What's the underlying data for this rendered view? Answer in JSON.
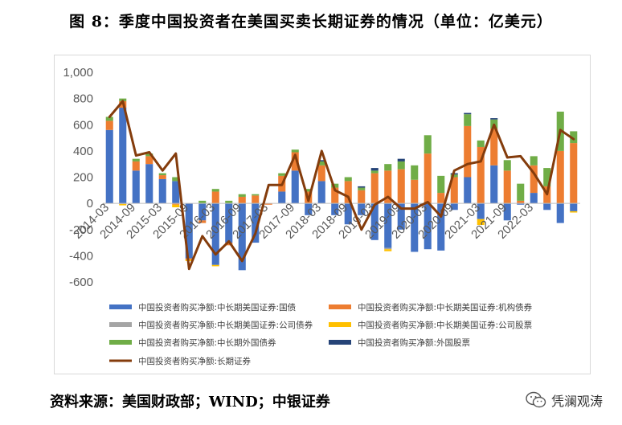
{
  "figure": {
    "title": "图 8：季度中国投资者在美国买卖长期证券的情况（单位：亿美元）",
    "source": "资料来源：美国财政部；WIND；中银证券",
    "watermark": "凭澜观涛",
    "watermark_icon": "wechat-icon"
  },
  "chart_data": {
    "type": "bar",
    "stacked": true,
    "title": "",
    "xlabel": "",
    "ylabel": "",
    "ylim": [
      -600,
      1000
    ],
    "yticks": [
      -600,
      -400,
      -200,
      0,
      200,
      400,
      600,
      800,
      1000
    ],
    "ytick_labels": [
      "-600",
      "-400",
      "-200",
      "0",
      "200",
      "400",
      "600",
      "800",
      "1,000"
    ],
    "grid": false,
    "legend_position": "bottom",
    "categories": [
      "2014-03",
      "2014-06",
      "2014-09",
      "2014-12",
      "2015-03",
      "2015-06",
      "2015-09",
      "2015-12",
      "2016-03",
      "2016-06",
      "2016-09",
      "2016-12",
      "2017-03",
      "2017-06",
      "2017-09",
      "2017-12",
      "2018-03",
      "2018-06",
      "2018-09",
      "2018-12",
      "2019-03",
      "2019-06",
      "2019-09",
      "2019-12",
      "2020-03",
      "2020-06",
      "2020-09",
      "2020-12",
      "2021-03",
      "2021-06",
      "2021-09",
      "2021-12",
      "2022-03",
      "2022-06",
      "2022-09",
      "2022-12"
    ],
    "xtick_labels": [
      "2014-03",
      "2014-09",
      "2015-03",
      "2015-09",
      "2016-03",
      "2016-09",
      "2017-03",
      "2017-09",
      "2018-03",
      "2018-09",
      "2019-03",
      "2019-09",
      "2020-03",
      "2020-09",
      "2021-03",
      "2021-09",
      "2022-03"
    ],
    "series": [
      {
        "name": "中国投资者购买净额:中长期美国证券:国债",
        "color": "#4472C4",
        "kind": "bar",
        "values": [
          560,
          730,
          250,
          300,
          185,
          170,
          -420,
          -130,
          -470,
          -300,
          -510,
          -300,
          0,
          90,
          250,
          -90,
          170,
          -90,
          -160,
          -90,
          -280,
          -340,
          -200,
          -370,
          -350,
          -360,
          -50,
          200,
          -120,
          290,
          -130,
          -10,
          80,
          -50,
          -150,
          -60
        ]
      },
      {
        "name": "中国投资者购买净额:中长期美国证券:机构债券",
        "color": "#ED7D31",
        "kind": "bar",
        "values": [
          70,
          50,
          70,
          60,
          30,
          -10,
          -10,
          -20,
          90,
          -20,
          50,
          60,
          -10,
          120,
          140,
          90,
          120,
          120,
          170,
          100,
          230,
          250,
          260,
          180,
          380,
          80,
          200,
          390,
          430,
          280,
          250,
          20,
          210,
          130,
          400,
          460
        ]
      },
      {
        "name": "中国投资者购买净额:中长期美国证券:公司债券",
        "color": "#A5A5A5",
        "kind": "bar",
        "values": [
          0,
          -5,
          0,
          0,
          0,
          0,
          0,
          0,
          0,
          0,
          0,
          0,
          0,
          0,
          0,
          0,
          0,
          0,
          0,
          0,
          0,
          -10,
          0,
          0,
          0,
          0,
          0,
          0,
          0,
          0,
          0,
          0,
          0,
          0,
          0,
          0
        ]
      },
      {
        "name": "中国投资者购买净额:中长期美国证券:公司股票",
        "color": "#FFC000",
        "kind": "bar",
        "values": [
          0,
          -10,
          0,
          0,
          0,
          -20,
          -10,
          0,
          -10,
          0,
          0,
          0,
          0,
          0,
          0,
          0,
          0,
          0,
          0,
          0,
          0,
          -15,
          0,
          0,
          0,
          0,
          0,
          0,
          -45,
          0,
          0,
          0,
          0,
          0,
          0,
          -10
        ]
      },
      {
        "name": "中国投资者购买净额:中长期外国债券",
        "color": "#70AD47",
        "kind": "bar",
        "values": [
          30,
          20,
          20,
          20,
          15,
          30,
          0,
          20,
          20,
          20,
          20,
          10,
          0,
          20,
          20,
          20,
          30,
          30,
          30,
          20,
          20,
          50,
          60,
          110,
          140,
          130,
          20,
          90,
          50,
          70,
          80,
          130,
          70,
          140,
          300,
          90
        ]
      },
      {
        "name": "中国投资者购买净额:外国股票",
        "color": "#264478",
        "kind": "bar",
        "values": [
          0,
          0,
          0,
          0,
          0,
          0,
          0,
          0,
          0,
          0,
          0,
          0,
          0,
          0,
          0,
          0,
          10,
          0,
          0,
          10,
          20,
          0,
          20,
          0,
          0,
          0,
          10,
          10,
          0,
          10,
          0,
          0,
          0,
          0,
          0,
          0
        ]
      },
      {
        "name": "中国投资者购买净额:长期证券",
        "color": "#843C0C",
        "kind": "line",
        "values": [
          660,
          780,
          365,
          390,
          250,
          380,
          -500,
          -250,
          -390,
          -290,
          -440,
          -230,
          140,
          140,
          370,
          20,
          400,
          100,
          50,
          -200,
          -10,
          50,
          -40,
          -40,
          10,
          -100,
          250,
          300,
          320,
          600,
          350,
          360,
          230,
          70,
          560,
          490
        ]
      }
    ]
  }
}
